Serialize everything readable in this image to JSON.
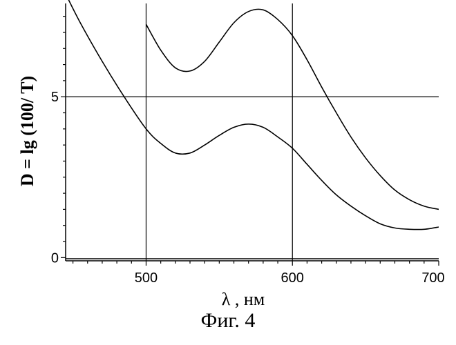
{
  "chart_data": {
    "type": "line",
    "xlabel": "λ , нм",
    "ylabel": "D = lg (100/ T)",
    "xlim": [
      445,
      700
    ],
    "ylim": [
      -0.1,
      7.9
    ],
    "x_ticks": [
      500,
      600,
      700
    ],
    "y_ticks": [
      0,
      5
    ],
    "grid_lines": {
      "x": [
        500,
        600
      ],
      "y": [
        5
      ]
    },
    "grid": "sparse",
    "legend": "none",
    "series": [
      {
        "x": [
          445,
          455,
          470,
          485,
          500,
          510,
          520,
          530,
          540,
          550,
          560,
          570,
          580,
          590,
          600,
          610,
          620,
          630,
          640,
          650,
          660,
          670,
          680,
          690,
          700
        ],
        "values": [
          8.2,
          7.3,
          6.1,
          5.0,
          4.0,
          3.55,
          3.25,
          3.25,
          3.5,
          3.8,
          4.05,
          4.15,
          4.05,
          3.75,
          3.4,
          2.9,
          2.4,
          1.95,
          1.6,
          1.3,
          1.05,
          0.92,
          0.88,
          0.88,
          0.95
        ]
      },
      {
        "x": [
          500,
          510,
          520,
          530,
          540,
          550,
          560,
          570,
          580,
          590,
          600,
          610,
          620,
          630,
          640,
          650,
          660,
          670,
          680,
          690,
          700
        ],
        "values": [
          7.25,
          6.45,
          5.9,
          5.8,
          6.1,
          6.7,
          7.3,
          7.65,
          7.7,
          7.4,
          6.9,
          6.15,
          5.3,
          4.5,
          3.75,
          3.1,
          2.55,
          2.1,
          1.8,
          1.6,
          1.5
        ]
      }
    ]
  },
  "caption": "Фиг. 4"
}
